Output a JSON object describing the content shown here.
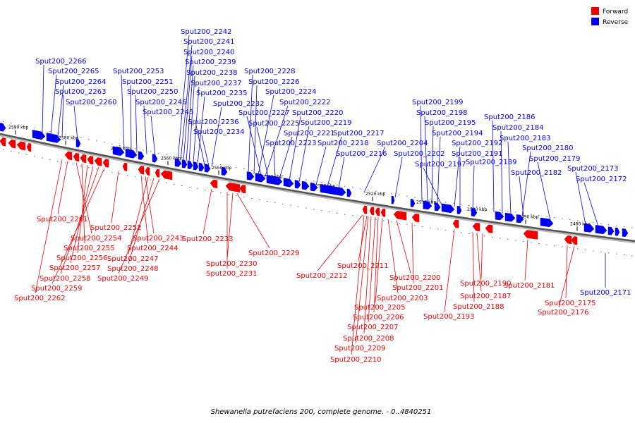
{
  "legend": {
    "forward": {
      "label": "Forward",
      "color": "#ee0000"
    },
    "reverse": {
      "label": "Reverse",
      "color": "#0000ee"
    }
  },
  "caption": "Shewanella putrefaciens 200, complete genome. - 0..4840251",
  "scale_labels": [
    "2590 kbp",
    "2580 kbp",
    "2570 kbp",
    "2560 kbp",
    "2550 kbp",
    "2540 kbp",
    "2530 kbp",
    "2520 kbp",
    "2510 kbp",
    "2500 kbp",
    "2490 kbp",
    "2480 kbp"
  ],
  "reverse_genes": [
    "Sput200_2266",
    "Sput200_2265",
    "Sput200_2264",
    "Sput200_2263",
    "Sput200_2260",
    "Sput200_2253",
    "Sput200_2251",
    "Sput200_2250",
    "Sput200_2246",
    "Sput200_2245",
    "Sput200_2242",
    "Sput200_2241",
    "Sput200_2240",
    "Sput200_2239",
    "Sput200_2238",
    "Sput200_2237",
    "Sput200_2235",
    "Sput200_2232",
    "Sput200_2236",
    "Sput200_2234",
    "Sput200_2228",
    "Sput200_2226",
    "Sput200_2224",
    "Sput200_2222",
    "Sput200_2227",
    "Sput200_2220",
    "Sput200_2225",
    "Sput200_2219",
    "Sput200_2221",
    "Sput200_2217",
    "Sput200_2223",
    "Sput200_2218",
    "Sput200_2216",
    "Sput200_2204",
    "Sput200_2202",
    "Sput200_2199",
    "Sput200_2198",
    "Sput200_2195",
    "Sput200_2194",
    "Sput200_2197",
    "Sput200_2192",
    "Sput200_2191",
    "Sput200_2189",
    "Sput200_2186",
    "Sput200_2184",
    "Sput200_2183",
    "Sput200_2180",
    "Sput200_2182",
    "Sput200_2179",
    "Sput200_2173",
    "Sput200_2172",
    "Sput200_2171"
  ],
  "forward_genes": [
    "Sput200_2261",
    "Sput200_2252",
    "Sput200_2254",
    "Sput200_2255",
    "Sput200_2256",
    "Sput200_2257",
    "Sput200_2258",
    "Sput200_2259",
    "Sput200_2262",
    "Sput200_2243",
    "Sput200_2244",
    "Sput200_2247",
    "Sput200_2248",
    "Sput200_2249",
    "Sput200_2233",
    "Sput200_2229",
    "Sput200_2230",
    "Sput200_2231",
    "Sput200_2212",
    "Sput200_2211",
    "Sput200_2200",
    "Sput200_2201",
    "Sput200_2203",
    "Sput200_2205",
    "Sput200_2206",
    "Sput200_2207",
    "Sput200_2208",
    "Sput200_2209",
    "Sput200_2210",
    "Sput200_2190",
    "Sput200_2187",
    "Sput200_2188",
    "Sput200_2193",
    "Sput200_2181",
    "Sput200_2175",
    "Sput200_2176"
  ]
}
